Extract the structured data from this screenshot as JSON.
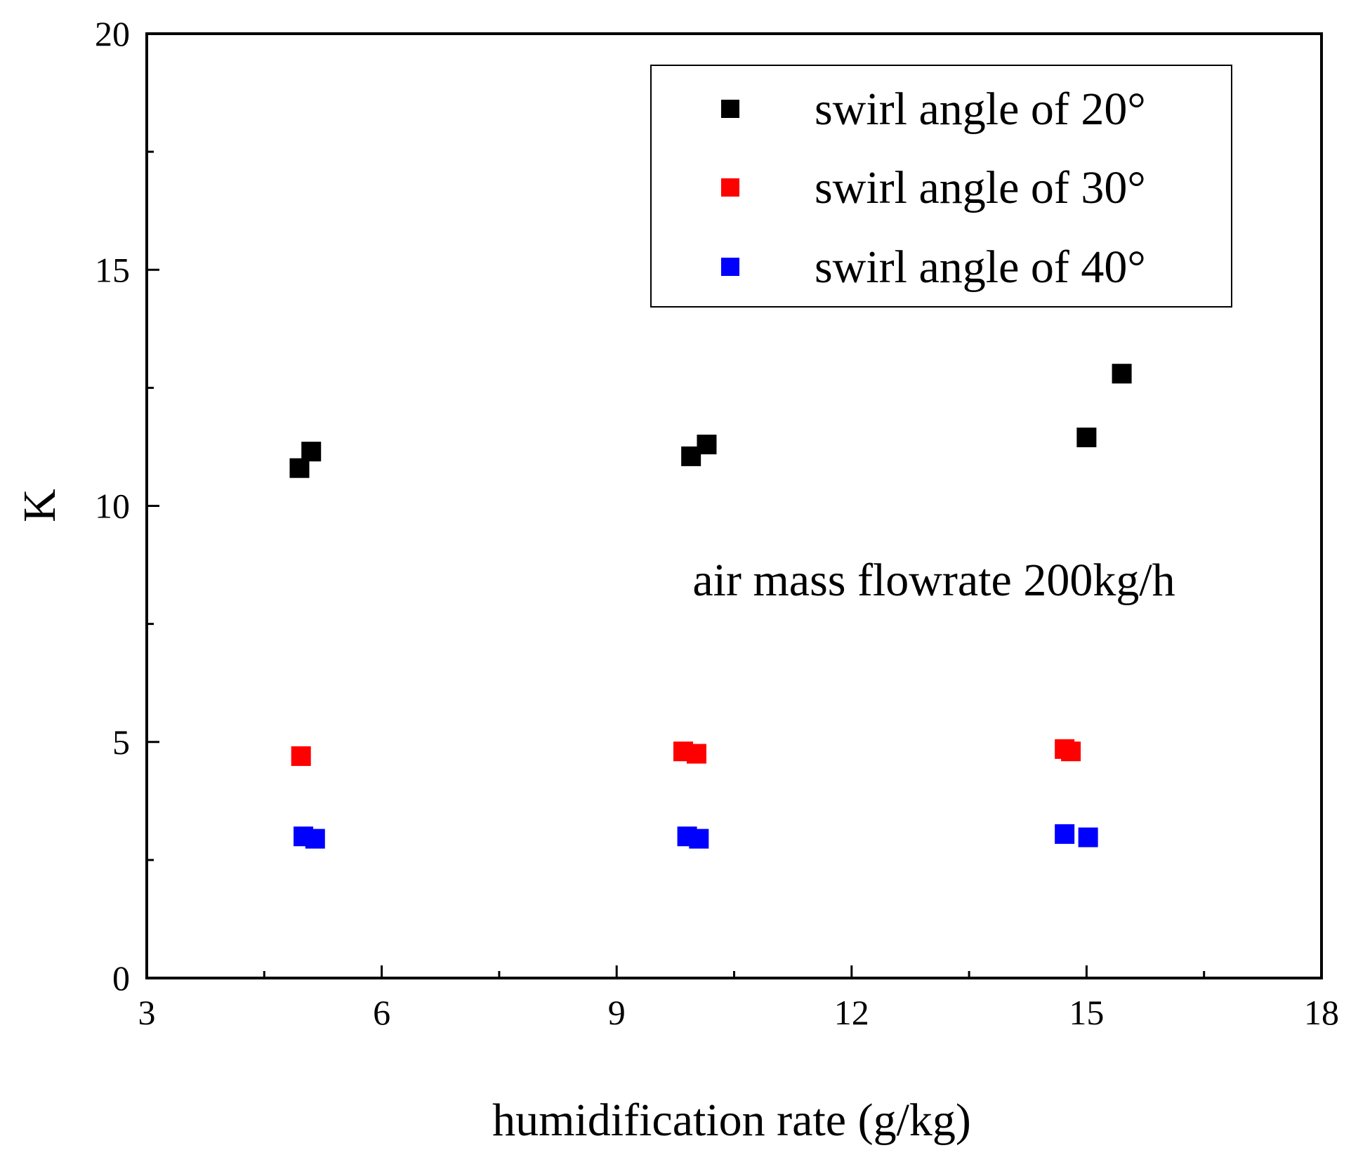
{
  "chart_data": {
    "type": "scatter",
    "title": "",
    "xlabel": "humidification rate (g/kg)",
    "ylabel": "K",
    "xlim": [
      3,
      18
    ],
    "ylim": [
      0,
      20
    ],
    "xticks": [
      3,
      6,
      9,
      12,
      15,
      18
    ],
    "yticks": [
      0,
      5,
      10,
      15,
      20
    ],
    "x_tick_labels": [
      "3",
      "6",
      "9",
      "12",
      "15",
      "18"
    ],
    "y_tick_labels": [
      "0",
      "5",
      "10",
      "15",
      "20"
    ],
    "grid": false,
    "legend_position": "top-right",
    "annotation": "air mass flowrate 200kg/h",
    "series": [
      {
        "name": "swirl angle of 20°",
        "color": "#000000",
        "marker": "square",
        "points": [
          [
            4.95,
            10.8
          ],
          [
            5.1,
            11.15
          ],
          [
            9.95,
            11.05
          ],
          [
            10.15,
            11.3
          ],
          [
            15.0,
            11.45
          ],
          [
            15.45,
            12.8
          ]
        ]
      },
      {
        "name": "swirl angle of 30°",
        "color": "#ff0000",
        "marker": "square",
        "points": [
          [
            4.97,
            4.7
          ],
          [
            9.85,
            4.8
          ],
          [
            10.02,
            4.75
          ],
          [
            14.72,
            4.85
          ],
          [
            14.8,
            4.8
          ]
        ]
      },
      {
        "name": "swirl angle of 40°",
        "color": "#0000ff",
        "marker": "square",
        "points": [
          [
            5.0,
            3.0
          ],
          [
            5.15,
            2.95
          ],
          [
            9.9,
            3.0
          ],
          [
            10.05,
            2.95
          ],
          [
            14.72,
            3.05
          ],
          [
            15.02,
            2.98
          ]
        ]
      }
    ]
  }
}
